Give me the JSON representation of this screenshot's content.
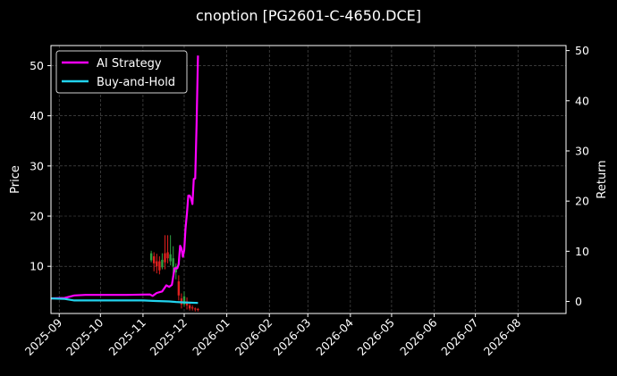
{
  "chart_data": {
    "type": "line",
    "title": "cnoption [PG2601-C-4650.DCE]",
    "ylabel": "Price",
    "y2label": "Return",
    "ylim": [
      0.6,
      54.0
    ],
    "y2lim": [
      -2.4,
      51.0
    ],
    "yticks": [
      10,
      20,
      30,
      40,
      50
    ],
    "y2ticks": [
      0,
      10,
      20,
      30,
      40,
      50
    ],
    "xlim": [
      "2025-08-26",
      "2026-09-05"
    ],
    "xticks": [
      "2025-09",
      "2025-10",
      "2025-11",
      "2025-12",
      "2026-01",
      "2026-02",
      "2026-03",
      "2026-04",
      "2026-05",
      "2026-06",
      "2026-07",
      "2026-08"
    ],
    "grid": true,
    "legend_position": "top-left",
    "series": [
      {
        "name": "AI Strategy",
        "color": "#ff00ff",
        "axis": "price",
        "points": [
          [
            "2025-08-26",
            3.6
          ],
          [
            "2025-09-05",
            3.7
          ],
          [
            "2025-09-12",
            4.2
          ],
          [
            "2025-09-20",
            4.3
          ],
          [
            "2025-10-20",
            4.3
          ],
          [
            "2025-11-06",
            4.4
          ],
          [
            "2025-11-08",
            4.1
          ],
          [
            "2025-11-11",
            4.7
          ],
          [
            "2025-11-15",
            5.0
          ],
          [
            "2025-11-18",
            6.2
          ],
          [
            "2025-11-20",
            5.9
          ],
          [
            "2025-11-22",
            6.3
          ],
          [
            "2025-11-24",
            9.6
          ],
          [
            "2025-11-26",
            9.6
          ],
          [
            "2025-11-27",
            10.4
          ],
          [
            "2025-11-28",
            14.1
          ],
          [
            "2025-11-29",
            13.6
          ],
          [
            "2025-11-30",
            11.9
          ],
          [
            "2025-12-01",
            13.2
          ],
          [
            "2025-12-02",
            17.6
          ],
          [
            "2025-12-03",
            20.6
          ],
          [
            "2025-12-04",
            24.1
          ],
          [
            "2025-12-05",
            24.1
          ],
          [
            "2025-12-06",
            23.5
          ],
          [
            "2025-12-07",
            22.4
          ],
          [
            "2025-12-08",
            27.4
          ],
          [
            "2025-12-09",
            27.5
          ],
          [
            "2025-12-10",
            38.0
          ],
          [
            "2025-12-11",
            52.0
          ]
        ]
      },
      {
        "name": "Buy-and-Hold",
        "color": "#22d3ee",
        "axis": "price",
        "points": [
          [
            "2025-08-26",
            3.6
          ],
          [
            "2025-09-05",
            3.5
          ],
          [
            "2025-09-12",
            3.2
          ],
          [
            "2025-10-01",
            3.2
          ],
          [
            "2025-11-01",
            3.2
          ],
          [
            "2025-11-10",
            3.1
          ],
          [
            "2025-11-20",
            3.0
          ],
          [
            "2025-11-25",
            2.9
          ],
          [
            "2025-12-01",
            2.8
          ],
          [
            "2025-12-11",
            2.7
          ]
        ]
      }
    ],
    "candles": [
      {
        "date": "2025-11-07",
        "open": 11.2,
        "close": 12.6,
        "high": 13.1,
        "low": 10.8
      },
      {
        "date": "2025-11-09",
        "open": 12.0,
        "close": 10.6,
        "high": 12.8,
        "low": 9.0
      },
      {
        "date": "2025-11-11",
        "open": 11.0,
        "close": 10.0,
        "high": 12.5,
        "low": 8.6
      },
      {
        "date": "2025-11-13",
        "open": 11.0,
        "close": 9.2,
        "high": 12.0,
        "low": 8.4
      },
      {
        "date": "2025-11-15",
        "open": 9.8,
        "close": 11.3,
        "high": 12.6,
        "low": 9.4
      },
      {
        "date": "2025-11-17",
        "open": 12.6,
        "close": 10.8,
        "high": 16.2,
        "low": 9.4
      },
      {
        "date": "2025-11-19",
        "open": 12.8,
        "close": 11.6,
        "high": 16.2,
        "low": 10.6
      },
      {
        "date": "2025-11-21",
        "open": 11.0,
        "close": 12.4,
        "high": 16.2,
        "low": 10.2
      },
      {
        "date": "2025-11-23",
        "open": 10.0,
        "close": 11.6,
        "high": 14.0,
        "low": 8.6
      },
      {
        "date": "2025-11-25",
        "open": 8.8,
        "close": 10.0,
        "high": 10.6,
        "low": 7.4
      },
      {
        "date": "2025-11-27",
        "open": 7.0,
        "close": 4.2,
        "high": 8.2,
        "low": 3.2
      },
      {
        "date": "2025-11-29",
        "open": 3.6,
        "close": 2.4,
        "high": 4.6,
        "low": 1.6
      },
      {
        "date": "2025-12-01",
        "open": 2.4,
        "close": 4.0,
        "high": 5.0,
        "low": 2.0
      },
      {
        "date": "2025-12-03",
        "open": 3.0,
        "close": 2.2,
        "high": 3.8,
        "low": 1.4
      },
      {
        "date": "2025-12-05",
        "open": 2.2,
        "close": 1.6,
        "high": 2.6,
        "low": 1.2
      },
      {
        "date": "2025-12-07",
        "open": 1.8,
        "close": 1.6,
        "high": 2.2,
        "low": 1.2
      },
      {
        "date": "2025-12-09",
        "open": 1.6,
        "close": 1.4,
        "high": 1.8,
        "low": 1.0
      },
      {
        "date": "2025-12-11",
        "open": 1.5,
        "close": 1.3,
        "high": 1.7,
        "low": 1.0
      }
    ],
    "candle_colors": {
      "up": "#2ea043",
      "down": "#e0201f"
    }
  }
}
